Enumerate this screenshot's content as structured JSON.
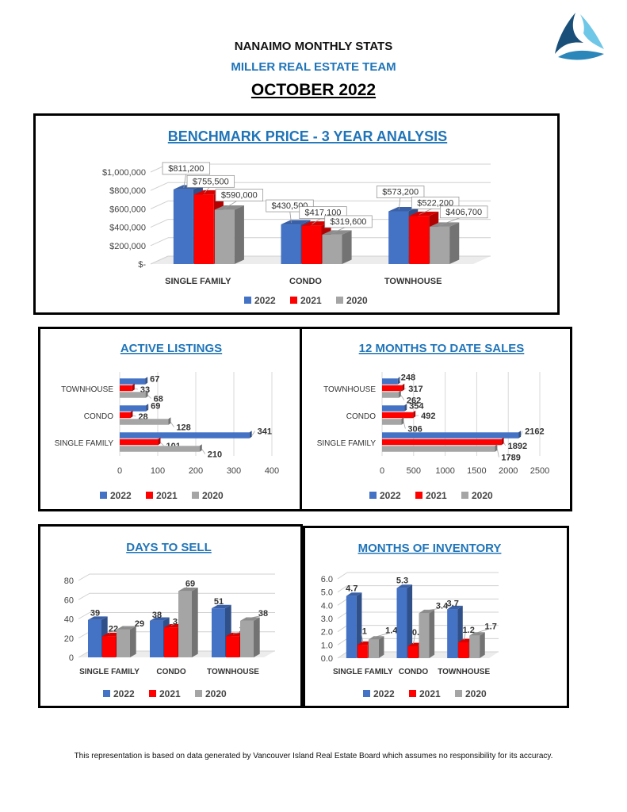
{
  "header": {
    "title": "NANAIMO MONTHLY STATS",
    "team": "MILLER REAL ESTATE TEAM",
    "month": "OCTOBER 2022"
  },
  "logo_icon": "triangle-swirl-logo-icon",
  "colors": {
    "y2022": "#4472c4",
    "y2021": "#ff0000",
    "y2020": "#a5a5a5",
    "title_blue": "#1f74b8"
  },
  "footer": "This representation is based on data generated by Vancouver Island Real Estate Board which assumes no responsibility for its accuracy.",
  "chart_data": [
    {
      "id": "benchmark",
      "type": "bar",
      "title": "BENCHMARK PRICE - 3 YEAR ANALYSIS",
      "categories": [
        "SINGLE FAMILY",
        "CONDO",
        "TOWNHOUSE"
      ],
      "series": [
        {
          "name": "2022",
          "values": [
            811200,
            430500,
            573200
          ],
          "labels": [
            "$811,200",
            "$430,500",
            "$573,200"
          ]
        },
        {
          "name": "2021",
          "values": [
            755500,
            417100,
            522200
          ],
          "labels": [
            "$755,500",
            "$417,100",
            "$522,200"
          ]
        },
        {
          "name": "2020",
          "values": [
            590000,
            319600,
            406700
          ],
          "labels": [
            "$590,000",
            "$319,600",
            "$406,700"
          ]
        }
      ],
      "ylim": [
        0,
        1000000
      ],
      "yticks": [
        0,
        200000,
        400000,
        600000,
        800000,
        1000000
      ],
      "ytick_labels": [
        "$-",
        "$200,000",
        "$400,000",
        "$600,000",
        "$800,000",
        "$1,000,000"
      ],
      "legend": "bottom",
      "grid": true
    },
    {
      "id": "listings",
      "type": "bar",
      "orientation": "horizontal",
      "title": "ACTIVE LISTINGS",
      "categories": [
        "TOWNHOUSE",
        "CONDO",
        "SINGLE FAMILY"
      ],
      "series": [
        {
          "name": "2022",
          "values": [
            67,
            69,
            341
          ]
        },
        {
          "name": "2021",
          "values": [
            33,
            28,
            101
          ]
        },
        {
          "name": "2020",
          "values": [
            68,
            128,
            210
          ]
        }
      ],
      "xlim": [
        0,
        400
      ],
      "xticks": [
        0,
        100,
        200,
        300,
        400
      ],
      "legend": "bottom",
      "grid": true
    },
    {
      "id": "sales",
      "type": "bar",
      "orientation": "horizontal",
      "title": "12 MONTHS TO DATE SALES",
      "categories": [
        "TOWNHOUSE",
        "CONDO",
        "SINGLE FAMILY"
      ],
      "series": [
        {
          "name": "2022",
          "values": [
            248,
            354,
            2162
          ]
        },
        {
          "name": "2021",
          "values": [
            317,
            492,
            1892
          ]
        },
        {
          "name": "2020",
          "values": [
            262,
            306,
            1789
          ]
        }
      ],
      "xlim": [
        0,
        2500
      ],
      "xticks": [
        0,
        500,
        1000,
        1500,
        2000,
        2500
      ],
      "legend": "bottom",
      "grid": true
    },
    {
      "id": "days",
      "type": "bar",
      "title": "DAYS TO SELL",
      "categories": [
        "SINGLE FAMILY",
        "CONDO",
        "TOWNHOUSE"
      ],
      "series": [
        {
          "name": "2022",
          "values": [
            39,
            38,
            51
          ]
        },
        {
          "name": "2021",
          "values": [
            22,
            31,
            22
          ]
        },
        {
          "name": "2020",
          "values": [
            29,
            69,
            38
          ]
        }
      ],
      "ylim": [
        0,
        80
      ],
      "yticks": [
        0,
        20,
        40,
        60,
        80
      ],
      "legend": "bottom",
      "grid": true
    },
    {
      "id": "inventory",
      "type": "bar",
      "title": "MONTHS OF INVENTORY",
      "categories": [
        "SINGLE FAMILY",
        "CONDO",
        "TOWNHOUSE"
      ],
      "series": [
        {
          "name": "2022",
          "values": [
            4.7,
            5.3,
            3.7
          ]
        },
        {
          "name": "2021",
          "values": [
            1,
            0.9,
            1.2
          ]
        },
        {
          "name": "2020",
          "values": [
            1.4,
            3.4,
            1.7
          ]
        }
      ],
      "ylim": [
        0,
        6
      ],
      "yticks": [
        0,
        1,
        2,
        3,
        4,
        5,
        6
      ],
      "ytick_labels": [
        "0.0",
        "1.0",
        "2.0",
        "3.0",
        "4.0",
        "5.0",
        "6.0"
      ],
      "legend": "bottom",
      "grid": true
    }
  ]
}
